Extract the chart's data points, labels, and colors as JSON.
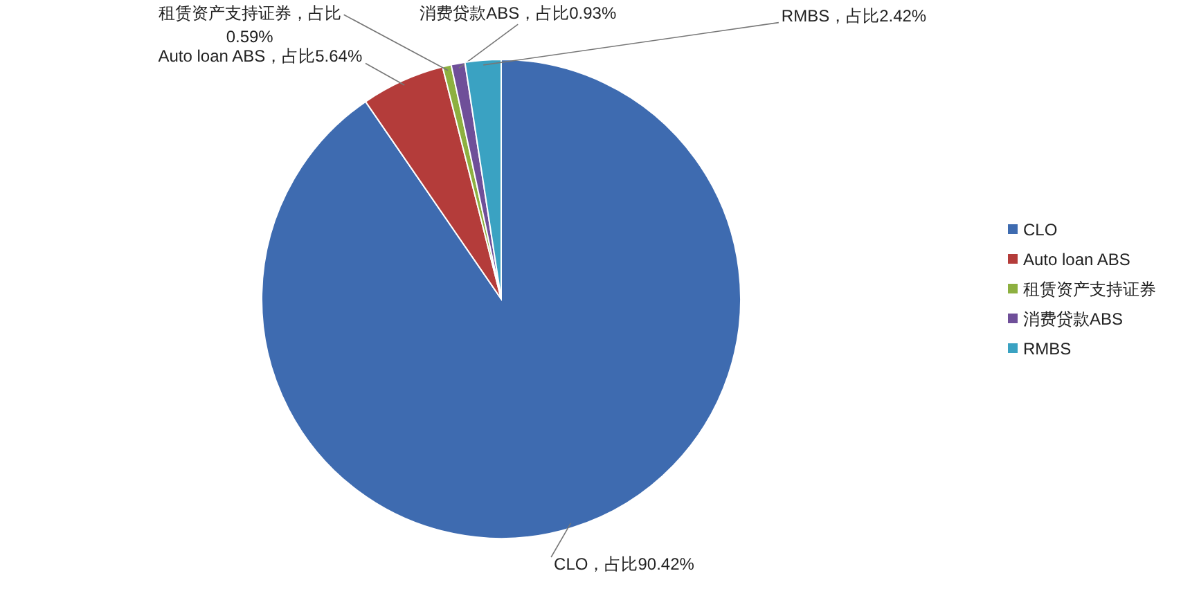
{
  "chart_data": {
    "type": "pie",
    "categories": [
      "CLO",
      "Auto loan ABS",
      "租赁资产支持证券",
      "消费贷款ABS",
      "RMBS"
    ],
    "values": [
      90.42,
      5.64,
      0.59,
      0.93,
      2.42
    ],
    "colors": [
      "#3e6bb0",
      "#b43c3a",
      "#8db040",
      "#6f4f99",
      "#3aa2c2"
    ],
    "value_labels": [
      "CLO，占比90.42%",
      "Auto loan ABS，占比5.64%",
      "租赁资产支持证券，占比0.59%",
      "消费贷款ABS，占比0.93%",
      "RMBS，占比2.42%"
    ],
    "legend": "right"
  }
}
